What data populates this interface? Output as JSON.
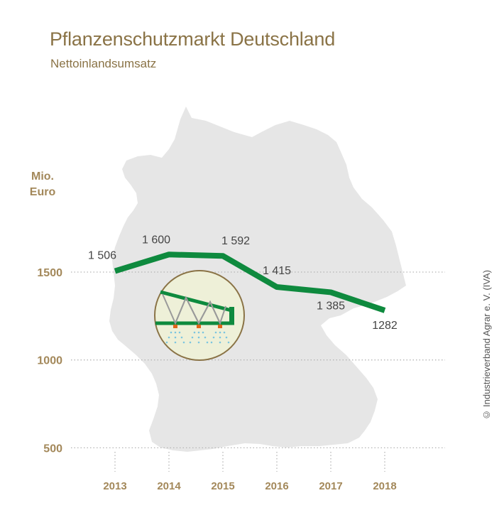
{
  "header": {
    "title": "Pflanzenschutzmarkt Deutschland",
    "subtitle": "Nettoinlandsumsatz"
  },
  "unit_label": [
    "Mio.",
    "Euro"
  ],
  "copyright": "© Industrieverband Agrar e. V. (IVA)",
  "colors": {
    "title": "#8a7346",
    "axis_text": "#a3885a",
    "line": "#0e8a3e",
    "map": "#e6e6e6",
    "badge_fill": "#eef0d8"
  },
  "chart_data": {
    "type": "line",
    "title": "Pflanzenschutzmarkt Deutschland",
    "subtitle": "Nettoinlandsumsatz",
    "ylabel": "Mio. Euro",
    "categories": [
      "2013",
      "2014",
      "2015",
      "2016",
      "2017",
      "2018"
    ],
    "series": [
      {
        "values": [
          1506,
          1600,
          1592,
          1415,
          1385,
          1282
        ]
      }
    ],
    "data_labels": [
      "1 506",
      "1 600",
      "1 592",
      "1 415",
      "1 385",
      "1282"
    ],
    "yticks": [
      500,
      1000,
      1500
    ],
    "ylim": [
      500,
      1600
    ],
    "grid": "dotted horizontal at y ticks",
    "background_icon": "germany-map",
    "inset_icon": "field-sprayer-icon"
  }
}
